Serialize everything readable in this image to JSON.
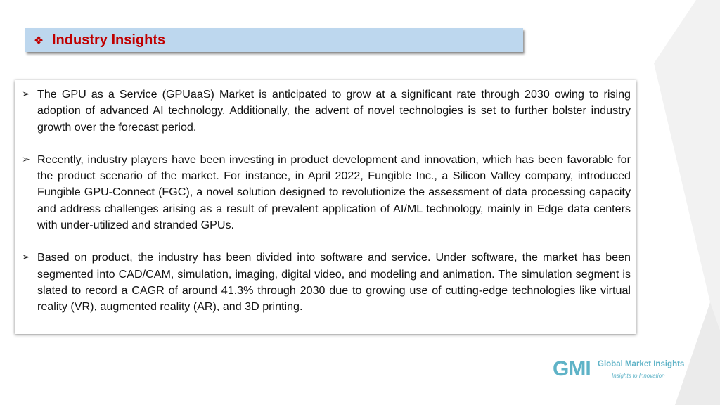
{
  "header": {
    "title": "Industry Insights",
    "bullet_icon": "diamond-bullet-icon"
  },
  "content": {
    "bullets": [
      "The GPU as a Service (GPUaaS) Market is anticipated to grow at a significant rate through 2030 owing to rising adoption of advanced AI technology. Additionally, the advent of novel technologies is set to further bolster industry growth over the forecast period.",
      "Recently, industry players have been investing in product development and innovation, which has been favorable for the product scenario of the market. For instance, in April 2022, Fungible Inc., a Silicon Valley company, introduced Fungible GPU-Connect (FGC), a novel solution designed to revolutionize the assessment of data processing capacity and address challenges arising as a result of prevalent application of AI/ML technology, mainly in Edge data centers with under-utilized and stranded GPUs.",
      "Based on product, the industry has been divided into software and service. Under software, the market has been segmented into CAD/CAM, simulation, imaging, digital video, and modeling and animation. The simulation segment is slated to record a CAGR of around 41.3% through 2030 due to growing use of cutting-edge technologies like virtual reality (VR), augmented reality (AR), and 3D printing."
    ]
  },
  "logo": {
    "mark": "GMI",
    "name": "Global Market Insights",
    "tagline": "Insights to Innovation"
  },
  "colors": {
    "title_bar_bg": "#bdd7ee",
    "title_text": "#c00000",
    "logo": "#5fb3c7"
  }
}
